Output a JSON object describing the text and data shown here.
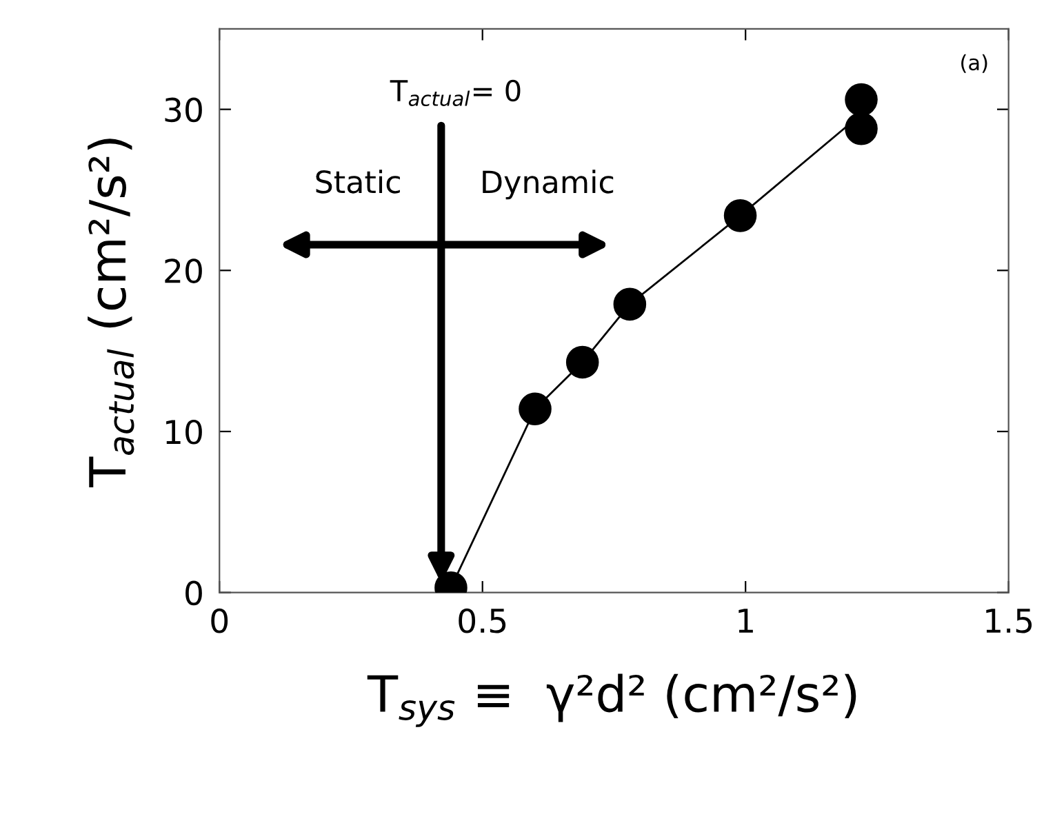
{
  "chart_data": {
    "type": "scatter",
    "xlabel": "T$_{sys}$ ≡  γ²d² (cm²/s²)",
    "ylabel": "T$_{actual}$ (cm²/s²)",
    "annotations": [
      "T$_{actual}$= 0",
      "Static",
      "Dynamic",
      "(a)"
    ],
    "series": [
      {
        "color": "#000000",
        "marker": "circle",
        "x": [
          0.44,
          0.6,
          0.69,
          0.78,
          0.99,
          1.22,
          1.22
        ],
        "values": [
          0.3,
          11.4,
          14.3,
          17.9,
          23.4,
          30.6,
          28.8
        ]
      },
      {
        "type": "line",
        "color": "#000000",
        "marker": "none",
        "x": [
          0.44,
          0.6,
          0.69,
          0.78,
          0.99,
          1.22
        ],
        "values": [
          0.3,
          11.4,
          14.3,
          17.9,
          23.4,
          29.7
        ]
      }
    ],
    "xlim": [
      0,
      1.5
    ],
    "ylim": [
      0,
      35
    ],
    "xticks": [
      0,
      0.5,
      1,
      1.5
    ],
    "yticks": [
      0,
      10,
      20,
      30
    ],
    "grid": false,
    "legend": false
  }
}
